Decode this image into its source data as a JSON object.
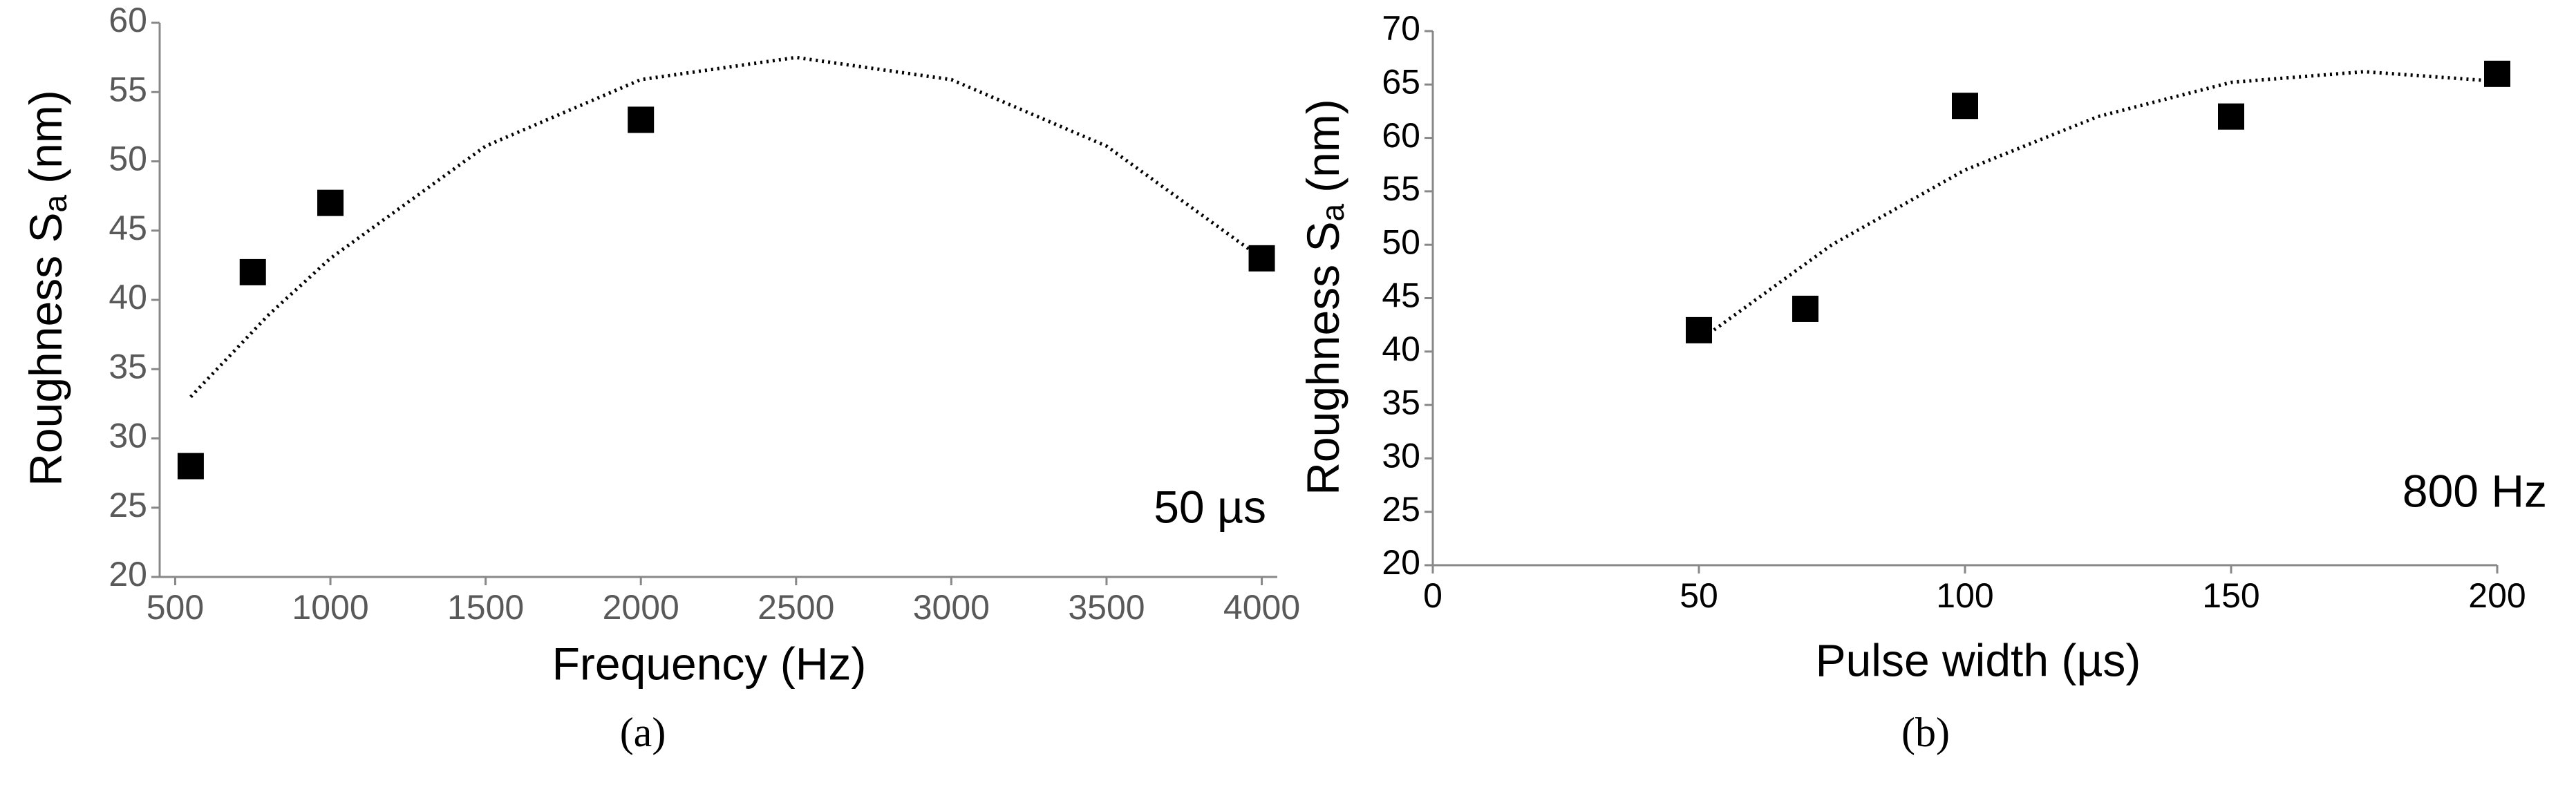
{
  "chart_data": [
    {
      "type": "scatter",
      "ylabel": "Roughness S",
      "ylabel_subscript": "a",
      "ylabel_unit": "(nm)",
      "xlabel": "Frequency (Hz)",
      "annotation": "50 µs",
      "caption": "(a)",
      "x": [
        550,
        750,
        1000,
        2000,
        4000
      ],
      "values": [
        28,
        42,
        47,
        53,
        43
      ],
      "color": "#000000",
      "trendline": {
        "x": [
          550,
          800,
          1000,
          1500,
          2000,
          2500,
          3000,
          3500,
          4000
        ],
        "values": [
          33.0,
          38.9,
          43.0,
          51.1,
          55.9,
          57.5,
          55.9,
          51.1,
          43.0
        ]
      },
      "xlim": [
        450,
        4050
      ],
      "xticks": [
        500,
        1000,
        1500,
        2000,
        2500,
        3000,
        3500,
        4000
      ],
      "ylim": [
        20,
        60
      ],
      "yticks": [
        20,
        25,
        30,
        35,
        40,
        45,
        50,
        55,
        60
      ],
      "tick_color": "#595959"
    },
    {
      "type": "scatter",
      "ylabel": "Roughness S",
      "ylabel_subscript": "a",
      "ylabel_unit": "(nm)",
      "xlabel": "Pulse width (µs)",
      "annotation": "800 Hz",
      "caption": "(b)",
      "x": [
        50,
        70,
        100,
        150,
        200
      ],
      "values": [
        42,
        44,
        63,
        62,
        66
      ],
      "color": "#000000",
      "trendline": {
        "x": [
          50,
          75,
          100,
          125,
          150,
          175,
          200
        ],
        "values": [
          41,
          50,
          57,
          62,
          65.2,
          66.2,
          65.3
        ]
      },
      "xlim": [
        0,
        200
      ],
      "xticks": [
        0,
        50,
        100,
        150,
        200
      ],
      "ylim": [
        20,
        70
      ],
      "yticks": [
        20,
        25,
        30,
        35,
        40,
        45,
        50,
        55,
        60,
        65,
        70
      ],
      "tick_color": "#000000"
    }
  ]
}
